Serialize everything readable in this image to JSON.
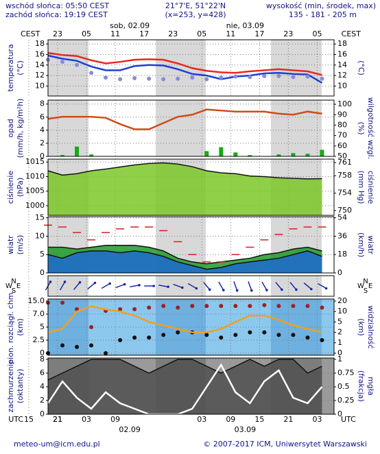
{
  "header": {
    "sunrise": "wschód słońca: 05:50 CEST",
    "sunset": "zachód słońca: 19:19 CEST",
    "coords": "21°7'E, 51°22'N",
    "grid_point": "(x=253, y=428)",
    "altitude_title": "wysokość (min, środek, max)",
    "altitude": "135 - 181 - 205 m"
  },
  "top_axis": {
    "zone": "CEST",
    "ticks": [
      {
        "value": 21,
        "label": "23"
      },
      {
        "value": 27,
        "label": "05"
      },
      {
        "value": 33,
        "label": "11"
      },
      {
        "value": 39,
        "label": "17"
      },
      {
        "value": 45,
        "label": "23"
      },
      {
        "value": 51,
        "label": "05"
      },
      {
        "value": 57,
        "label": "11"
      },
      {
        "value": 63,
        "label": "17"
      },
      {
        "value": 69,
        "label": "23"
      },
      {
        "value": 75,
        "label": "05"
      }
    ],
    "dates": [
      {
        "value": 36,
        "label": "sob, 02.09"
      },
      {
        "value": 60,
        "label": "nie, 03.09"
      }
    ]
  },
  "time_axis": {
    "zone": "UTC",
    "xlim": [
      19,
      78.5
    ],
    "ticks": [
      21,
      {
        "value": 27,
        "label": "03"
      },
      {
        "value": 33,
        "label": "09"
      },
      15,
      21,
      {
        "value": 51,
        "label": "03"
      },
      {
        "value": 57,
        "label": "09"
      },
      {
        "value": 63,
        "label": "15"
      },
      {
        "value": 69,
        "label": "21"
      },
      {
        "value": 75,
        "label": "03"
      }
    ],
    "dates": [
      {
        "value": 36,
        "label": "02.09"
      },
      {
        "value": 60,
        "label": "03.09"
      }
    ]
  },
  "chart_data": [
    {
      "type": "line",
      "labels": [
        "temperatura",
        "(°C)"
      ],
      "labels_right": [
        "(°C)"
      ],
      "ylim": [
        8.1,
        18.8
      ],
      "yticks": [
        10,
        12,
        14,
        16,
        18
      ],
      "x": [
        19,
        22,
        25,
        28,
        31,
        34,
        37,
        40,
        43,
        46,
        49,
        52,
        55,
        58,
        61,
        64,
        67,
        70,
        73,
        76
      ],
      "series": [
        {
          "style": "line",
          "color": "#e8281e",
          "values": [
            16.3,
            15.9,
            15.7,
            14.9,
            14.3,
            14.6,
            15.0,
            15.1,
            15.0,
            14.3,
            13.4,
            12.9,
            12.6,
            12.5,
            12.8,
            13.0,
            13.2,
            13.0,
            12.8,
            12.1
          ]
        },
        {
          "style": "line",
          "color": "#1a3fd8",
          "values": [
            15.8,
            15.2,
            14.8,
            13.7,
            13.0,
            13.0,
            13.8,
            14.0,
            13.9,
            13.2,
            12.3,
            12.0,
            11.3,
            11.8,
            12.0,
            12.4,
            12.5,
            12.3,
            12.2,
            10.6
          ]
        },
        {
          "style": "dots",
          "color": "#8a8ad8",
          "values": [
            15.0,
            14.6,
            14.0,
            12.5,
            11.6,
            11.3,
            11.5,
            11.4,
            11.3,
            11.4,
            11.6,
            11.3,
            11.6,
            11.8,
            11.7,
            11.9,
            11.9,
            11.7,
            11.8,
            11.4
          ]
        }
      ]
    },
    {
      "type": "line",
      "labels": [
        "opad",
        "(mm/h, kg/m²h)"
      ],
      "labels_right": [
        "(%)",
        "wilgotność wzgl."
      ],
      "ylim": [
        0,
        8.6
      ],
      "yticks": [
        0,
        2,
        4,
        6,
        8
      ],
      "y2lim": [
        50,
        104
      ],
      "y2ticks": [
        50,
        60,
        70,
        80,
        90,
        100
      ],
      "x": [
        19,
        22,
        25,
        28,
        31,
        34,
        37,
        40,
        43,
        46,
        49,
        52,
        55,
        58,
        61,
        64,
        67,
        70,
        73,
        76
      ],
      "series": [
        {
          "style": "bars",
          "color": "#18a818",
          "values": [
            0,
            0.2,
            1.5,
            0.3,
            0,
            0,
            0,
            0,
            0,
            0,
            0,
            0.8,
            1.4,
            0.6,
            0.2,
            0,
            0.3,
            0.5,
            0.4,
            1.0
          ]
        },
        {
          "style": "line",
          "color": "#d04a1a",
          "axis": "y2",
          "values": [
            86,
            88,
            88,
            88,
            87,
            81,
            76,
            76,
            82,
            88,
            90,
            95,
            94,
            93,
            93,
            93,
            91,
            90,
            93,
            91
          ]
        }
      ]
    },
    {
      "type": "line",
      "labels": [
        "ciśnienie",
        "(hPa)"
      ],
      "labels_right": [
        "(mm Hg)",
        "ciśnienie"
      ],
      "ylim": [
        996.7,
        1016
      ],
      "yticks": [
        1000,
        1005,
        1010,
        1015
      ],
      "y2lim": [
        748.9,
        761.8
      ],
      "y2ticks": [
        750,
        754,
        758,
        761
      ],
      "x": [
        19,
        22,
        25,
        28,
        31,
        34,
        37,
        40,
        43,
        46,
        49,
        52,
        55,
        58,
        61,
        64,
        67,
        70,
        73,
        76
      ],
      "series": [
        {
          "style": "area",
          "color": "#7cc828",
          "values": [
            1012,
            1010.5,
            1011,
            1012,
            1012.6,
            1013.3,
            1014,
            1014.5,
            1014.7,
            1014.3,
            1013.4,
            1012,
            1011.3,
            1011,
            1010.2,
            1010,
            1009.6,
            1009.4,
            1009.2,
            1009.3
          ]
        }
      ]
    },
    {
      "type": "line",
      "labels": [
        "wiatr",
        "(m/s)"
      ],
      "labels_right": [
        "(km/h)",
        "wiatr"
      ],
      "ylim": [
        0,
        15.3
      ],
      "yticks": [
        0,
        5,
        10,
        15
      ],
      "y2lim": [
        0,
        55.08
      ],
      "y2ticks": [
        0,
        18,
        36,
        54
      ],
      "x": [
        19,
        22,
        25,
        28,
        31,
        34,
        37,
        40,
        43,
        46,
        49,
        52,
        55,
        58,
        61,
        64,
        67,
        70,
        73,
        76
      ],
      "series": [
        {
          "style": "area",
          "color": "#1e9a28",
          "values": [
            7,
            7,
            6.5,
            7,
            7.5,
            7.5,
            7.5,
            7,
            6,
            4,
            3,
            2.5,
            3,
            3.5,
            4,
            5,
            5.5,
            6.5,
            7,
            6
          ]
        },
        {
          "style": "area",
          "color": "#1e6ad0",
          "values": [
            5,
            4,
            5.5,
            6,
            6,
            5.5,
            6,
            5.5,
            4.5,
            3,
            2,
            1,
            1.5,
            2.5,
            3,
            3.5,
            4,
            5,
            6,
            4.5
          ]
        },
        {
          "style": "dashes",
          "color": "#d02020",
          "values": [
            13,
            12.5,
            11,
            9,
            11,
            12,
            12.5,
            12.5,
            11.5,
            8.5,
            5,
            3,
            3,
            5,
            7,
            9,
            10.5,
            12,
            12.5,
            12.5
          ]
        }
      ]
    },
    {
      "type": "arrows",
      "compass": [
        "N",
        "E",
        "S",
        "W"
      ],
      "x": [
        19,
        22,
        25,
        28,
        31,
        34,
        37,
        40,
        43,
        46,
        49,
        52,
        55,
        58,
        61,
        64,
        67,
        70,
        73,
        76
      ],
      "series": [
        {
          "style": "arrows",
          "color": "#1a2aa8",
          "values": [
            210,
            210,
            220,
            230,
            240,
            250,
            260,
            270,
            280,
            290,
            300,
            320,
            330,
            340,
            340,
            330,
            320,
            320,
            310,
            300
          ]
        }
      ]
    },
    {
      "type": "line",
      "labels": [
        "pion. rozciągł. chm.",
        "(km)"
      ],
      "labels_right": [
        "(km)",
        "widzialność"
      ],
      "yscale": "even",
      "y2scale": "even",
      "yticks": [
        0,
        2.5,
        5,
        {
          "value": 7,
          "label": "7.0"
        },
        {
          "value": 15,
          "label": "15.0"
        }
      ],
      "y2ticks": [
        0,
        1,
        2,
        5,
        10,
        20
      ],
      "x": [
        19,
        22,
        25,
        28,
        31,
        34,
        37,
        40,
        43,
        46,
        49,
        52,
        55,
        58,
        61,
        64,
        67,
        70,
        73,
        76
      ],
      "series": [
        {
          "style": "dots",
          "color": "#a02020",
          "values": [
            14,
            14,
            10,
            5,
            9,
            10,
            10,
            11,
            12,
            11,
            12,
            12,
            12,
            12,
            12,
            12.5,
            12,
            12,
            12,
            11
          ]
        },
        {
          "style": "dots",
          "color": "#101010",
          "values": [
            0,
            1.5,
            1.2,
            1.5,
            0,
            2.5,
            3,
            3,
            3.5,
            4,
            4,
            3.5,
            3,
            3.5,
            4,
            4,
            3.5,
            3.5,
            3,
            2.5
          ]
        },
        {
          "style": "line",
          "color": "#f0a020",
          "axis": "y2",
          "values": [
            2,
            3,
            10,
            15,
            12,
            10,
            8,
            5,
            4,
            3,
            2,
            2,
            3,
            5,
            8,
            8,
            6,
            4,
            3,
            2
          ]
        }
      ]
    },
    {
      "type": "line",
      "labels": [
        "zachmurzenie",
        "(oktanty)"
      ],
      "labels_right": [
        "(frakcja)",
        "mgła"
      ],
      "ylim": [
        0,
        8.2
      ],
      "yticks": [
        0,
        2,
        4,
        6,
        8
      ],
      "y2lim": [
        0,
        1.025
      ],
      "y2ticks": [
        0,
        0.25,
        0.5,
        0.75,
        1
      ],
      "x": [
        19,
        22,
        25,
        28,
        31,
        34,
        37,
        40,
        43,
        46,
        49,
        52,
        55,
        58,
        61,
        64,
        67,
        70,
        73,
        76
      ],
      "series": [
        {
          "style": "area",
          "color": "#505050",
          "values": [
            5,
            6,
            7,
            8,
            8,
            8,
            7,
            6,
            7,
            8,
            8,
            7,
            6,
            7,
            8,
            7,
            8,
            8,
            6,
            7
          ]
        },
        {
          "style": "line",
          "color": "#ffffff",
          "axis": "y2",
          "values": [
            0.2,
            0.6,
            0.3,
            0.1,
            0.4,
            0.2,
            0.1,
            0,
            0,
            0,
            0.1,
            0.5,
            0.9,
            0.4,
            0.2,
            0.6,
            0.8,
            0.3,
            0.2,
            0.5
          ]
        }
      ]
    }
  ],
  "footer": {
    "email": "meteo-um@icm.edu.pl",
    "copyright": "© 2007-2017 ICM, Uniwersytet Warszawski"
  }
}
